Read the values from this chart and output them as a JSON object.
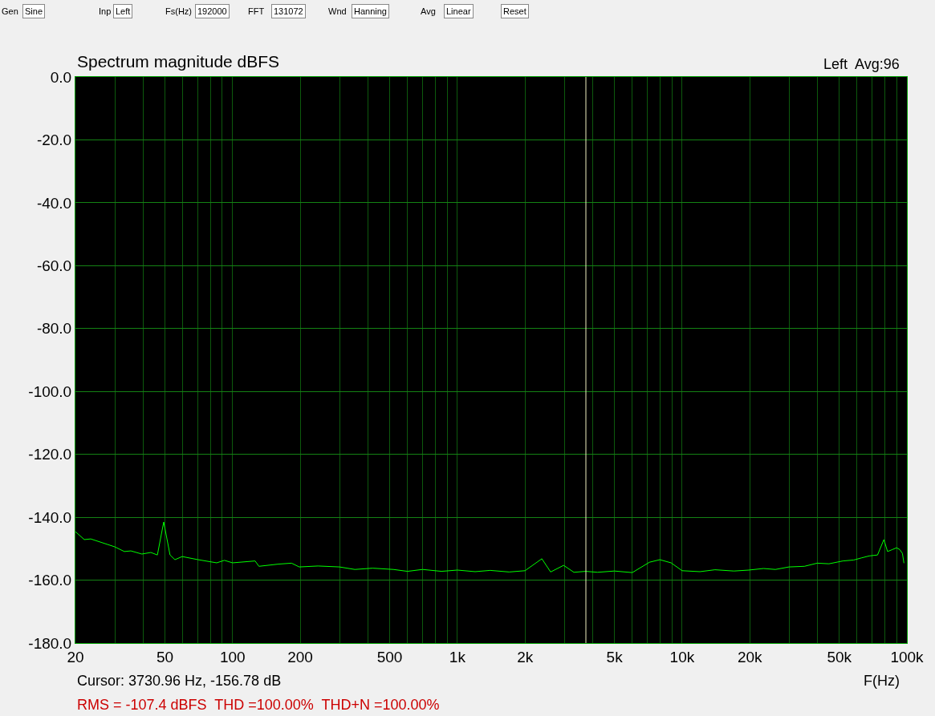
{
  "chart_data": {
    "type": "line",
    "title": "Spectrum magnitude dBFS",
    "xlabel": "F(Hz)",
    "annotations": [
      "Gen",
      "Sine",
      "Inp",
      "Left",
      "Fs(Hz)",
      "192000",
      "FFT",
      "131072",
      "Wnd",
      "Hanning",
      "Avg",
      "Linear",
      "Reset",
      "Left  Avg:96",
      "Cursor: 3730.96 Hz, -156.78 dB",
      "RMS = -107.4 dBFS  THD =100.00%  THD+N =100.00%"
    ],
    "log": "x",
    "grid": true,
    "marker": "none",
    "line_style": "solid",
    "xlim": [
      20,
      100000
    ],
    "xticks": [
      20,
      {
        "value": 30,
        "label": null
      },
      {
        "value": 40,
        "label": null
      },
      50,
      {
        "value": 60,
        "label": null
      },
      {
        "value": 70,
        "label": null
      },
      {
        "value": 80,
        "label": null
      },
      {
        "value": 90,
        "label": null
      },
      100,
      200,
      {
        "value": 300,
        "label": null
      },
      {
        "value": 400,
        "label": null
      },
      500,
      {
        "value": 600,
        "label": null
      },
      {
        "value": 700,
        "label": null
      },
      {
        "value": 800,
        "label": null
      },
      {
        "value": 900,
        "label": null
      },
      {
        "value": 1000,
        "label": "1k"
      },
      {
        "value": 2000,
        "label": "2k"
      },
      {
        "value": 3000,
        "label": null
      },
      {
        "value": 4000,
        "label": null
      },
      {
        "value": 5000,
        "label": "5k"
      },
      {
        "value": 6000,
        "label": null
      },
      {
        "value": 7000,
        "label": null
      },
      {
        "value": 8000,
        "label": null
      },
      {
        "value": 9000,
        "label": null
      },
      {
        "value": 10000,
        "label": "10k"
      },
      {
        "value": 20000,
        "label": "20k"
      },
      {
        "value": 30000,
        "label": null
      },
      {
        "value": 40000,
        "label": null
      },
      {
        "value": 50000,
        "label": "50k"
      },
      {
        "value": 60000,
        "label": null
      },
      {
        "value": 70000,
        "label": null
      },
      {
        "value": 80000,
        "label": null
      },
      {
        "value": 90000,
        "label": null
      },
      {
        "value": 100000,
        "label": "100k"
      }
    ],
    "ylim": [
      -180,
      0
    ],
    "yticks": [
      {
        "value": 0,
        "label": "0.0"
      },
      {
        "value": -20,
        "label": "-20.0"
      },
      {
        "value": -40,
        "label": "-40.0"
      },
      {
        "value": -60,
        "label": "-60.0"
      },
      {
        "value": -80,
        "label": "-80.0"
      },
      {
        "value": -100,
        "label": "-100.0"
      },
      {
        "value": -120,
        "label": "-120.0"
      },
      {
        "value": -140,
        "label": "-140.0"
      },
      {
        "value": -160,
        "label": "-160.0"
      },
      {
        "value": -180,
        "label": "-180.0"
      }
    ],
    "ref_lines": [
      {
        "axis": "x",
        "value": 3730.96,
        "color": "#f0f0c0"
      }
    ],
    "x": [
      20,
      21.9,
      23.4,
      29.9,
      33,
      35.3,
      39.5,
      43.3,
      46.3,
      49.4,
      52.7,
      55.4,
      59.7,
      70.3,
      85,
      92,
      100,
      126,
      131,
      160,
      183,
      198,
      240,
      299,
      350,
      420,
      519,
      600,
      700,
      850,
      1000,
      1200,
      1400,
      1700,
      2000,
      2377,
      2600,
      2970,
      3300,
      3730,
      4200,
      5000,
      6000,
      7160,
      7960,
      8930,
      10000,
      12000,
      14000,
      17000,
      19800,
      23000,
      26000,
      29900,
      35000,
      39900,
      45000,
      51900,
      58000,
      63000,
      68000,
      74000,
      79000,
      82000,
      86000,
      90000,
      93000,
      95500,
      97000
    ],
    "series": [
      {
        "color": "#00ff00",
        "values": [
          -144.6,
          -147.1,
          -146.9,
          -149.4,
          -150.9,
          -150.7,
          -151.7,
          -151.2,
          -152.0,
          -141.5,
          -152.0,
          -153.5,
          -152.5,
          -153.5,
          -154.5,
          -153.7,
          -154.5,
          -153.9,
          -155.6,
          -154.9,
          -154.6,
          -155.8,
          -155.5,
          -155.8,
          -156.6,
          -156.2,
          -156.6,
          -157.2,
          -156.6,
          -157.2,
          -156.8,
          -157.3,
          -156.9,
          -157.4,
          -157.0,
          -153.2,
          -157.4,
          -155.3,
          -157.5,
          -157.2,
          -157.5,
          -157.1,
          -157.6,
          -154.3,
          -153.5,
          -154.5,
          -157.0,
          -157.3,
          -156.7,
          -157.1,
          -156.8,
          -156.3,
          -156.6,
          -155.8,
          -155.6,
          -154.6,
          -154.8,
          -153.9,
          -153.6,
          -152.9,
          -152.3,
          -152.0,
          -147.1,
          -150.9,
          -150.3,
          -149.7,
          -150.3,
          -151.5,
          -154.6
        ]
      }
    ]
  }
}
